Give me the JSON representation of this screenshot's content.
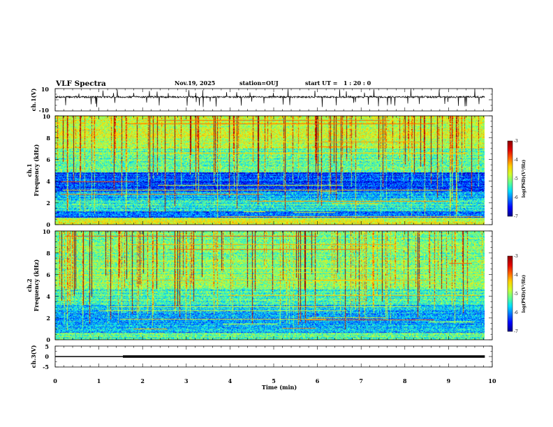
{
  "header": {
    "title": "VLF Spectra",
    "date": "Nov.19, 2025",
    "station": "station=OUJ",
    "start_time": "start UT =   1 : 20 : 0"
  },
  "chart_data": [
    {
      "panel": "ch1-waveform",
      "type": "line",
      "ylabel": "ch.1(V)",
      "ylim": [
        -10,
        10
      ],
      "y_ticks": [
        "10",
        "-10"
      ],
      "xlim": [
        0,
        10
      ],
      "baseline_v": 2.5,
      "data_end_min": 9.83
    },
    {
      "panel": "ch1-spectrogram",
      "type": "heatmap",
      "ylabel": "ch.1\nFrequency (kHz)",
      "ylim": [
        0,
        10
      ],
      "y_ticks": [
        "0",
        "2",
        "4",
        "6",
        "8",
        "10"
      ],
      "xlim": [
        0,
        10
      ],
      "data_end_min": 9.83,
      "colorbar": {
        "label": "log(PSD)(V²/Hz)",
        "range": [
          -7,
          -3
        ],
        "ticks": [
          "-3",
          "-4",
          "-5",
          "-6",
          "-7"
        ]
      }
    },
    {
      "panel": "ch2-spectrogram",
      "type": "heatmap",
      "ylabel": "ch.2\nFrequency (kHz)",
      "ylim": [
        0,
        10
      ],
      "y_ticks": [
        "0",
        "2",
        "4",
        "6",
        "8",
        "10"
      ],
      "xlim": [
        0,
        10
      ],
      "data_end_min": 9.83,
      "colorbar": {
        "label": "log(PSD)(V²/Hz)",
        "range": [
          -7,
          -3
        ],
        "ticks": [
          "-3",
          "-4",
          "-5",
          "-6",
          "-7"
        ]
      }
    },
    {
      "panel": "ch3-level",
      "type": "line",
      "ylabel": "ch.3(V)",
      "ylim": [
        -5,
        5
      ],
      "y_ticks": [
        "5",
        "0",
        "-5"
      ],
      "xlim": [
        0,
        10
      ],
      "x_ticks": [
        "0",
        "1",
        "2",
        "3",
        "4",
        "5",
        "6",
        "7",
        "8",
        "9",
        "10"
      ],
      "xlabel": "Time (min)",
      "level_v": 0,
      "thick_from_min": 1.55,
      "data_end_min": 9.83
    }
  ],
  "colors": {
    "colormap": [
      "#00008f",
      "#0000ff",
      "#0070ff",
      "#00e0ff",
      "#60ff90",
      "#d0ff30",
      "#ffd000",
      "#ff6000",
      "#e00000",
      "#900000"
    ]
  }
}
